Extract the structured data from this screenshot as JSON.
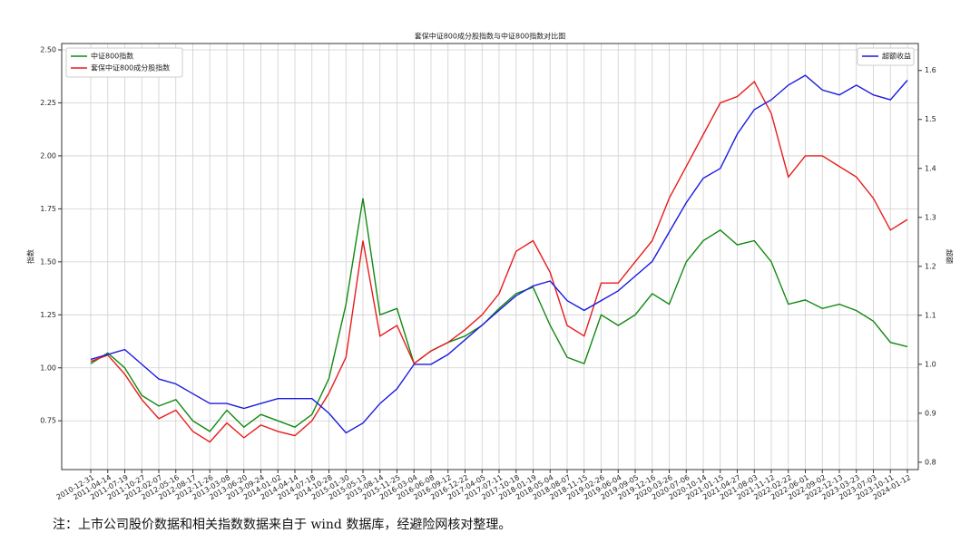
{
  "chart_data": {
    "type": "line",
    "title": "套保中证800成分股指数与中证800指数对比图",
    "ylabel": "指数",
    "y2label": "超额",
    "footnote": "注：上市公司股价数据和相关指数数据来自于 wind 数据库，经避险网核对整理。",
    "categories": [
      "2010-12-31",
      "2011-04-14",
      "2011-07-19",
      "2011-10-27",
      "2012-02-07",
      "2012-05-16",
      "2012-08-17",
      "2012-11-26",
      "2013-03-08",
      "2013-06-20",
      "2013-09-24",
      "2014-01-02",
      "2014-04-14",
      "2014-07-18",
      "2014-10-28",
      "2015-01-30",
      "2015-05-13",
      "2015-08-14",
      "2015-11-25",
      "2016-03-04",
      "2016-06-08",
      "2016-09-12",
      "2016-12-22",
      "2017-04-05",
      "2017-07-11",
      "2017-10-18",
      "2018-01-19",
      "2018-05-04",
      "2018-08-07",
      "2018-11-15",
      "2019-02-26",
      "2019-06-04",
      "2019-09-05",
      "2019-12-16",
      "2020-03-26",
      "2020-07-06",
      "2020-10-14",
      "2021-01-15",
      "2021-04-27",
      "2021-08-03",
      "2021-11-12",
      "2022-02-22",
      "2022-06-01",
      "2022-09-02",
      "2022-12-13",
      "2023-03-23",
      "2023-07-03",
      "2023-10-11",
      "2024-01-12"
    ],
    "series": [
      {
        "name": "中证800指数",
        "color": "#118811",
        "axis": "y",
        "values": [
          1.02,
          1.07,
          1.0,
          0.87,
          0.82,
          0.85,
          0.75,
          0.7,
          0.8,
          0.72,
          0.78,
          0.75,
          0.72,
          0.78,
          0.95,
          1.3,
          1.8,
          1.25,
          1.28,
          1.02,
          1.08,
          1.12,
          1.15,
          1.2,
          1.28,
          1.35,
          1.38,
          1.2,
          1.05,
          1.02,
          1.25,
          1.2,
          1.25,
          1.35,
          1.3,
          1.5,
          1.6,
          1.65,
          1.58,
          1.6,
          1.5,
          1.3,
          1.32,
          1.28,
          1.3,
          1.27,
          1.22,
          1.12,
          1.1
        ]
      },
      {
        "name": "套保中证800成分股指数",
        "color": "#e81c1c",
        "axis": "y",
        "values": [
          1.03,
          1.06,
          0.97,
          0.85,
          0.76,
          0.8,
          0.7,
          0.65,
          0.74,
          0.67,
          0.73,
          0.7,
          0.68,
          0.75,
          0.88,
          1.05,
          1.6,
          1.15,
          1.2,
          1.02,
          1.08,
          1.12,
          1.18,
          1.25,
          1.35,
          1.55,
          1.6,
          1.45,
          1.2,
          1.15,
          1.4,
          1.4,
          1.5,
          1.6,
          1.8,
          1.95,
          2.1,
          2.25,
          2.28,
          2.35,
          2.2,
          1.9,
          2.0,
          2.0,
          1.95,
          1.9,
          1.8,
          1.65,
          1.7
        ]
      },
      {
        "name": "超额收益",
        "color": "#1a1ae0",
        "axis": "y2",
        "values": [
          1.01,
          1.02,
          1.03,
          1.0,
          0.97,
          0.96,
          0.94,
          0.92,
          0.92,
          0.91,
          0.92,
          0.93,
          0.93,
          0.93,
          0.9,
          0.86,
          0.88,
          0.92,
          0.95,
          1.0,
          1.0,
          1.02,
          1.05,
          1.08,
          1.11,
          1.14,
          1.16,
          1.17,
          1.13,
          1.11,
          1.13,
          1.15,
          1.18,
          1.21,
          1.27,
          1.33,
          1.38,
          1.4,
          1.47,
          1.52,
          1.54,
          1.57,
          1.59,
          1.56,
          1.55,
          1.57,
          1.55,
          1.54,
          1.58
        ]
      }
    ],
    "ylim": [
      0.52,
      2.53
    ],
    "yticks": [
      {
        "value": 0.75,
        "label": "0.75"
      },
      {
        "value": 1.0,
        "label": "1.00"
      },
      {
        "value": 1.25,
        "label": "1.25"
      },
      {
        "value": 1.5,
        "label": "1.50"
      },
      {
        "value": 1.75,
        "label": "1.75"
      },
      {
        "value": 2.0,
        "label": "2.00"
      },
      {
        "value": 2.25,
        "label": "2.25"
      },
      {
        "value": 2.5,
        "label": "2.50"
      }
    ],
    "y2lim": [
      0.785,
      1.655
    ],
    "y2ticks": [
      0.8,
      0.9,
      {
        "value": 1.0,
        "label": "1.0"
      },
      1.1,
      1.2,
      1.3,
      1.4,
      1.5,
      1.6
    ],
    "grid": true,
    "legend": "upper left",
    "legend2": "upper right"
  }
}
